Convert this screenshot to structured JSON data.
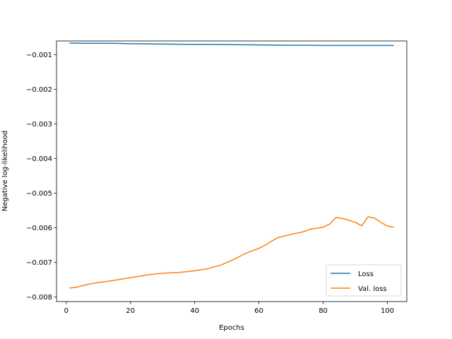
{
  "chart_data": {
    "type": "line",
    "xlabel": "Epochs",
    "ylabel": "Negative log-likelihood",
    "xlim": [
      -3.05,
      106.05
    ],
    "ylim": [
      -0.00813,
      -0.0006
    ],
    "xticks": [
      0,
      20,
      40,
      60,
      80,
      100
    ],
    "yticks": [
      -0.001,
      -0.002,
      -0.003,
      -0.004,
      -0.005,
      -0.006,
      -0.007,
      -0.008
    ],
    "ytick_labels": [
      "−0.001",
      "−0.002",
      "−0.003",
      "−0.004",
      "−0.005",
      "−0.006",
      "−0.007",
      "−0.008"
    ],
    "grid": false,
    "legend_position": "lower-right",
    "series": [
      {
        "name": "Loss",
        "color": "#1f77b4",
        "x": [
          1,
          5,
          10,
          15,
          20,
          25,
          30,
          35,
          40,
          45,
          50,
          55,
          60,
          65,
          70,
          75,
          80,
          85,
          90,
          95,
          100,
          102
        ],
        "y": [
          -0.00066,
          -0.000665,
          -0.000665,
          -0.00067,
          -0.00068,
          -0.000685,
          -0.00069,
          -0.000695,
          -0.0007,
          -0.0007,
          -0.000705,
          -0.00071,
          -0.000715,
          -0.00072,
          -0.000725,
          -0.000725,
          -0.00073,
          -0.00073,
          -0.00073,
          -0.00073,
          -0.00073,
          -0.00073
        ]
      },
      {
        "name": "Val. loss",
        "color": "#ff7f0e",
        "x": [
          1,
          3,
          5,
          8,
          10,
          14,
          18,
          22,
          26,
          30,
          35,
          40,
          44,
          48,
          52,
          56,
          60,
          62,
          64,
          66,
          70,
          74,
          76,
          80,
          82,
          84,
          86,
          88,
          90,
          92,
          94,
          96,
          98,
          100,
          102
        ],
        "y": [
          -0.00774,
          -0.00772,
          -0.00767,
          -0.00761,
          -0.00758,
          -0.00753,
          -0.00747,
          -0.00741,
          -0.00735,
          -0.00731,
          -0.00729,
          -0.00724,
          -0.00718,
          -0.00708,
          -0.00692,
          -0.00673,
          -0.00659,
          -0.0065,
          -0.00638,
          -0.00628,
          -0.00619,
          -0.00611,
          -0.00604,
          -0.00598,
          -0.00589,
          -0.0057,
          -0.00573,
          -0.00578,
          -0.00584,
          -0.00594,
          -0.00568,
          -0.00572,
          -0.00584,
          -0.00595,
          -0.00598
        ]
      }
    ]
  }
}
